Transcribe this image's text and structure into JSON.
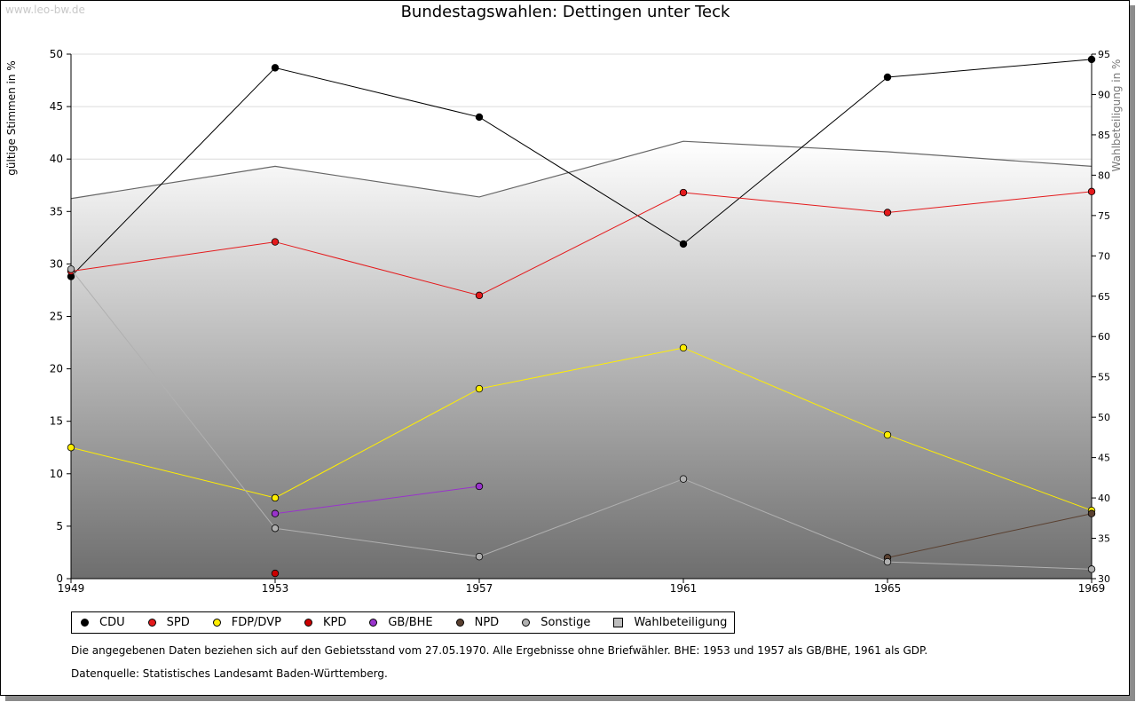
{
  "watermark": "www.leo-bw.de",
  "notes": {
    "text1": "Die angegebenen Daten beziehen sich auf den Gebietsstand vom 27.05.1970. Alle Ergebnisse ohne Briefwähler. BHE: 1953 und 1957 als GB/BHE, 1961 als GDP.",
    "text2": "Datenquelle: Statistisches Landesamt Baden-Württemberg."
  },
  "chart_data": {
    "type": "line",
    "title": "Bundestagswahlen: Dettingen unter Teck",
    "xlabel": "",
    "ylabel": "gültige Stimmen in %",
    "y2label": "Wahlbeteiligung in %",
    "x": [
      "1949",
      "1953",
      "1957",
      "1961",
      "1965",
      "1969"
    ],
    "ylim": [
      0,
      50
    ],
    "yticks": [
      0,
      5,
      10,
      15,
      20,
      25,
      30,
      35,
      40,
      45,
      50
    ],
    "y2lim": [
      30,
      95
    ],
    "y2ticks": [
      30,
      35,
      40,
      45,
      50,
      55,
      60,
      65,
      70,
      75,
      80,
      85,
      90,
      95
    ],
    "grid": true,
    "legend_position": "bottom",
    "series": [
      {
        "name": "CDU",
        "color": "#000000",
        "values": [
          28.8,
          48.7,
          44.0,
          31.9,
          47.8,
          49.5
        ]
      },
      {
        "name": "SPD",
        "color": "#e41a1c",
        "values": [
          29.3,
          32.1,
          27.0,
          36.8,
          34.9,
          36.9
        ]
      },
      {
        "name": "FDP/DVP",
        "color": "#ffee00",
        "values": [
          12.5,
          7.7,
          18.1,
          22.0,
          13.7,
          6.5
        ]
      },
      {
        "name": "KPD",
        "color": "#cc0000",
        "values": [
          null,
          0.5,
          null,
          null,
          null,
          null
        ]
      },
      {
        "name": "GB/BHE",
        "color": "#9933cc",
        "values": [
          null,
          6.2,
          8.8,
          null,
          null,
          null
        ]
      },
      {
        "name": "NPD",
        "color": "#5a4030",
        "values": [
          null,
          null,
          null,
          null,
          2.0,
          6.2
        ]
      },
      {
        "name": "Sonstige",
        "color": "#b0b0b0",
        "values": [
          29.5,
          4.8,
          2.1,
          9.5,
          1.6,
          0.9
        ]
      }
    ],
    "turnout": {
      "name": "Wahlbeteiligung",
      "color": "#666666",
      "values": [
        77.1,
        81.1,
        77.3,
        84.2,
        82.9,
        81.1
      ]
    }
  }
}
